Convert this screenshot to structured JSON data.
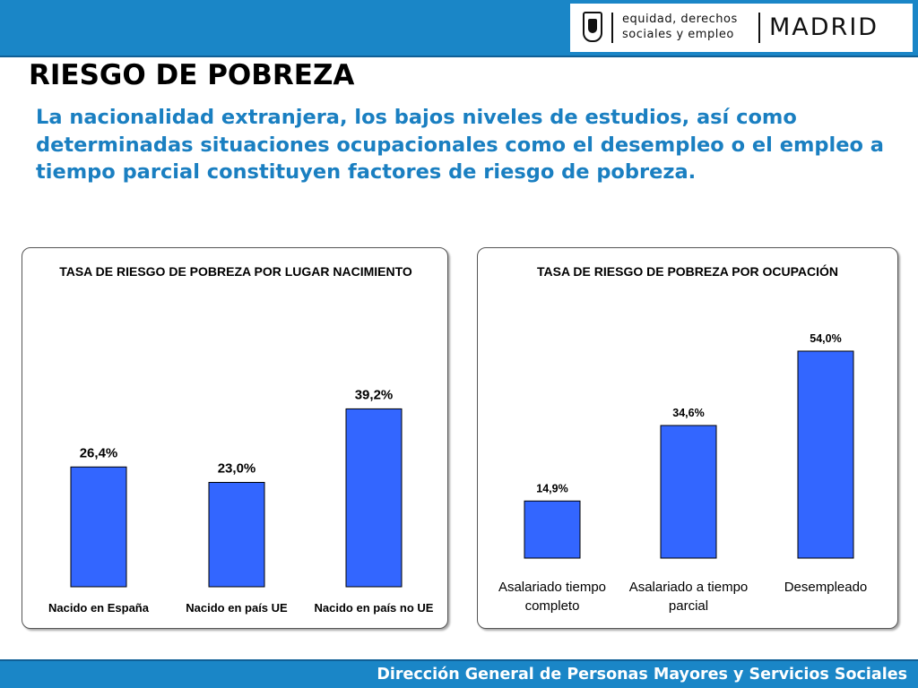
{
  "header": {
    "logo_icon": "madrid-crest-icon",
    "department_line1": "equidad, derechos",
    "department_line2": "sociales y empleo",
    "city": "MADRID"
  },
  "page_title": "RIESGO DE POBREZA",
  "intro_text": "La nacionalidad extranjera, los bajos niveles de estudios, así como determinadas situaciones ocupacionales como el desempleo o el empleo a tiempo parcial constituyen factores de riesgo de pobreza.",
  "colors": {
    "bar": "#3366ff",
    "header_bar": "#1a86c7",
    "intro_text": "#1a7fc1"
  },
  "chart_data": [
    {
      "type": "bar",
      "title": "TASA DE RIESGO DE POBREZA POR LUGAR NACIMIENTO",
      "categories": [
        "Nacido en España",
        "Nacido en país UE",
        "Nacido en país no UE"
      ],
      "values": [
        26.4,
        23.0,
        39.2
      ],
      "value_labels": [
        "26,4%",
        "23,0%",
        "39,2%"
      ],
      "unit": "%",
      "ylim": [
        0,
        50
      ],
      "grid": false,
      "legend": false
    },
    {
      "type": "bar",
      "title": "TASA DE RIESGO DE POBREZA POR OCUPACIÓN",
      "categories": [
        "Asalariado tiempo completo",
        "Asalariado a tiempo parcial",
        "Desempleado"
      ],
      "values": [
        14.9,
        34.6,
        54.0
      ],
      "value_labels": [
        "14,9%",
        "34,6%",
        "54,0%"
      ],
      "unit": "%",
      "ylim": [
        0,
        60
      ],
      "grid": false,
      "legend": false
    }
  ],
  "footer": {
    "text": "Dirección General de Personas Mayores y Servicios Sociales"
  }
}
